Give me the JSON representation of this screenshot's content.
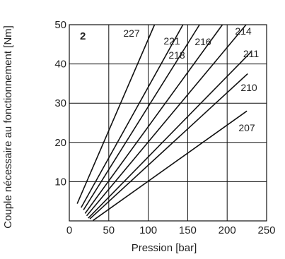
{
  "chart_data": {
    "type": "line",
    "panel_label": "2",
    "xlabel": "Pression [bar]",
    "ylabel": "Couple nécessaire au fonctionnement [Nm]",
    "xlim": [
      0,
      250
    ],
    "ylim": [
      0,
      50
    ],
    "xticks": [
      0,
      50,
      100,
      150,
      200,
      250
    ],
    "yticks": [
      10,
      20,
      30,
      40,
      50
    ],
    "grid": true,
    "colors": {
      "line": "#111111",
      "grid": "#111111",
      "text": "#222222"
    },
    "series": [
      {
        "name": "227",
        "x": [
          10,
          108
        ],
        "y": [
          4.4,
          50
        ]
      },
      {
        "name": "221",
        "x": [
          15,
          144
        ],
        "y": [
          3.4,
          50
        ]
      },
      {
        "name": "218",
        "x": [
          18,
          165
        ],
        "y": [
          2.8,
          50
        ]
      },
      {
        "name": "216",
        "x": [
          20,
          194
        ],
        "y": [
          1.9,
          50
        ]
      },
      {
        "name": "214",
        "x": [
          22,
          224
        ],
        "y": [
          1.3,
          50
        ]
      },
      {
        "name": "211",
        "x": [
          24,
          230
        ],
        "y": [
          0.7,
          43
        ]
      },
      {
        "name": "210",
        "x": [
          26,
          226
        ],
        "y": [
          0.5,
          37.5
        ]
      },
      {
        "name": "207",
        "x": [
          30,
          225
        ],
        "y": [
          0.1,
          28
        ]
      }
    ]
  }
}
